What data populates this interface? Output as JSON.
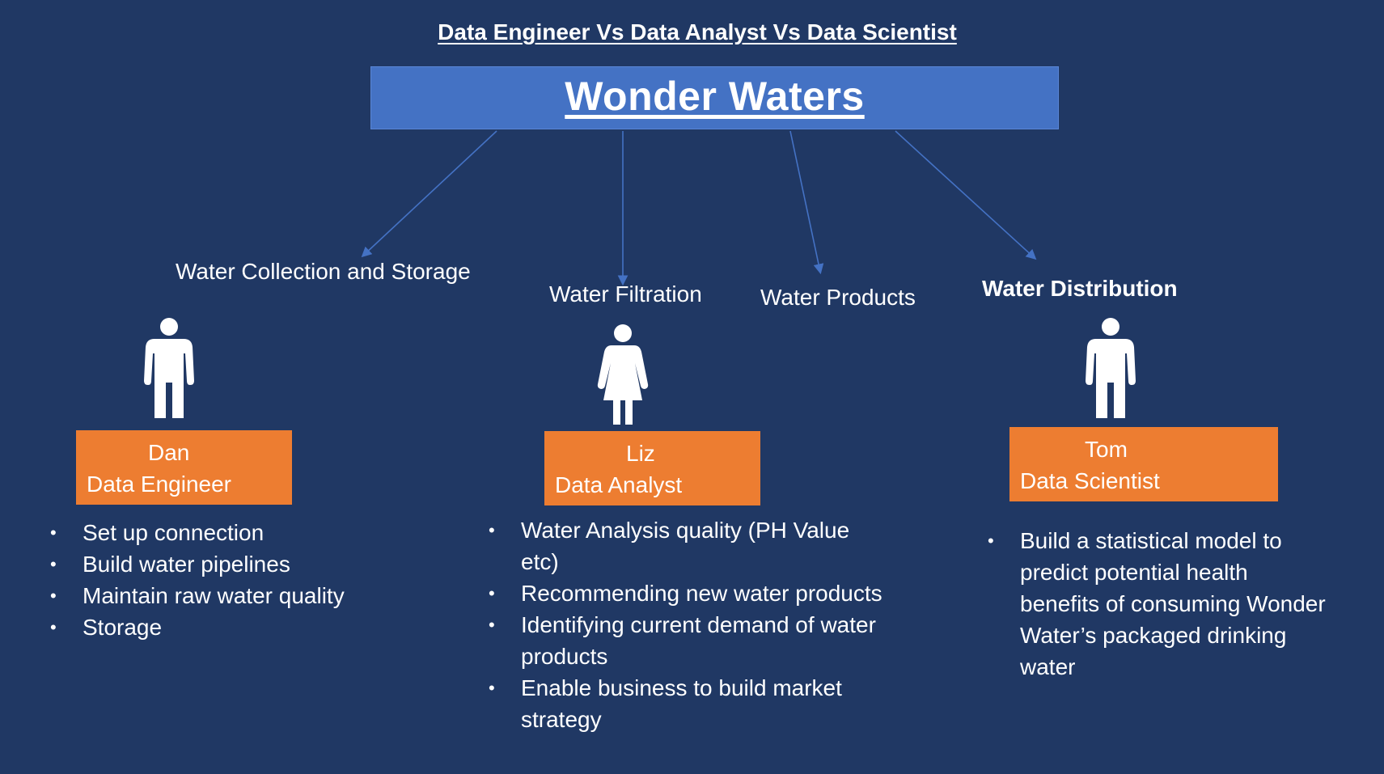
{
  "header": {
    "title": "Data Engineer Vs Data Analyst Vs Data Scientist",
    "company": "Wonder Waters"
  },
  "stages": [
    {
      "label": "Water Collection and Storage"
    },
    {
      "label": "Water Filtration"
    },
    {
      "label": "Water Products"
    },
    {
      "label": "Water Distribution"
    }
  ],
  "roles": [
    {
      "name": "Dan",
      "title": "Data Engineer",
      "gender_icon": "male-person-icon",
      "duties": [
        "Set up connection",
        "Build  water pipelines",
        "Maintain raw water quality",
        "Storage"
      ]
    },
    {
      "name": "Liz",
      "title": "Data Analyst",
      "gender_icon": "female-person-icon",
      "duties": [
        "Water Analysis  quality (PH Value etc)",
        "Recommending new water products",
        "Identifying current demand of water products",
        "Enable business to build market strategy"
      ]
    },
    {
      "name": "Tom",
      "title": "Data Scientist",
      "gender_icon": "male-person-icon",
      "duties": [
        "Build a statistical model to predict potential health benefits of consuming Wonder Water’s packaged drinking water"
      ]
    }
  ],
  "colors": {
    "background": "#203864",
    "title_box": "#4472c4",
    "role_box": "#ed7d31",
    "text": "#ffffff",
    "connector": "#4472c4"
  }
}
